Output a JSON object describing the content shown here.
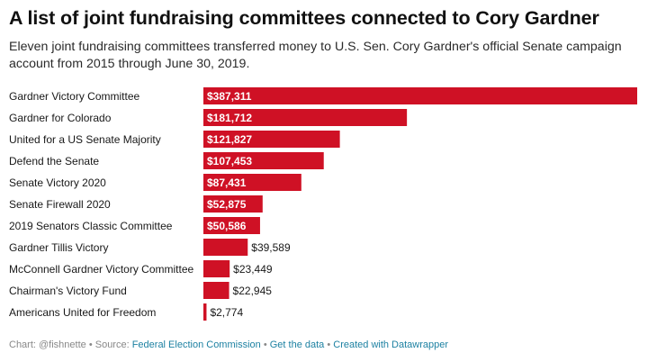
{
  "header": {
    "title": "A list of joint fundraising committees connected to Cory Gardner",
    "subtitle": "Eleven joint fundraising committees transferred money to U.S. Sen. Cory Gardner's official Senate campaign account from 2015 through June 30, 2019."
  },
  "chart_data": {
    "type": "bar",
    "orientation": "horizontal",
    "categories": [
      "Gardner Victory Committee",
      "Gardner for Colorado",
      "United for a US Senate Majority",
      "Defend the Senate",
      "Senate Victory 2020",
      "Senate Firewall 2020",
      "2019 Senators Classic Committee",
      "Gardner Tillis Victory",
      "McConnell Gardner Victory Committee",
      "Chairman's Victory Fund",
      "Americans United for Freedom"
    ],
    "values": [
      387311,
      181712,
      121827,
      107453,
      87431,
      52875,
      50586,
      39589,
      23449,
      22945,
      2774
    ],
    "value_labels": [
      "$387,311",
      "$181,712",
      "$121,827",
      "$107,453",
      "$87,431",
      "$52,875",
      "$50,586",
      "$39,589",
      "$23,449",
      "$22,945",
      "$2,774"
    ],
    "color": "#cf1125"
  },
  "footer": {
    "chart_credit": "Chart: @fishnette",
    "source_prefix": "Source: ",
    "source_link": "Federal Election Commission",
    "get_data": "Get the data",
    "created_with": "Created with Datawrapper",
    "separator": " • "
  }
}
